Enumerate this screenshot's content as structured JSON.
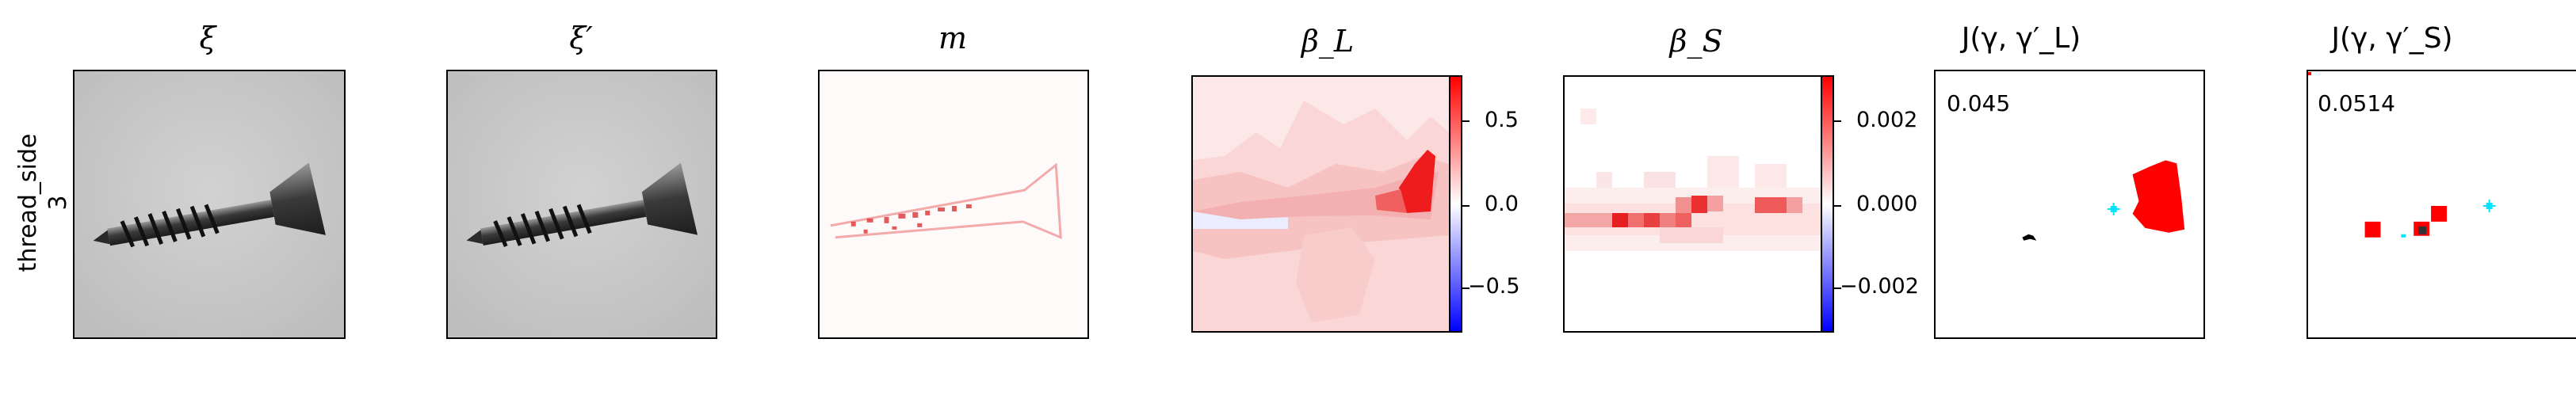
{
  "row_label": {
    "line1": "thread_side",
    "line2": "3"
  },
  "panels": [
    {
      "title": "ξ"
    },
    {
      "title": "ξ′"
    },
    {
      "title": "m"
    },
    {
      "title": "β_L"
    },
    {
      "title": "β_S"
    },
    {
      "title": "J(γ, γ′_L)"
    },
    {
      "title": "J(γ, γ′_S)"
    }
  ],
  "colorbar_L": {
    "ticks": [
      "0.5",
      "0.0",
      "−0.5"
    ],
    "colormap": "bwr"
  },
  "colorbar_S": {
    "ticks": [
      "0.002",
      "0.000",
      "−0.002"
    ],
    "colormap": "bwr"
  },
  "scores": {
    "L": "0.045",
    "S": "0.0514"
  },
  "colors": {
    "positive": "#ff0000",
    "negative": "#0000ff",
    "marker": "#00e5ff"
  }
}
